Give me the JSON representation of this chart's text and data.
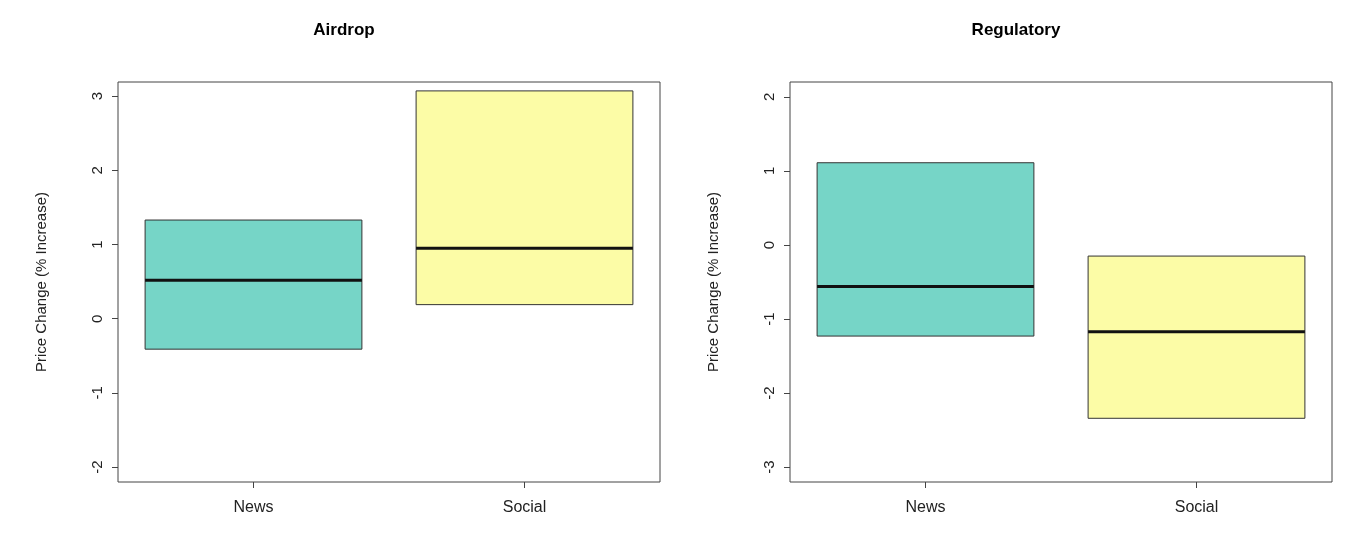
{
  "chart_data": [
    {
      "type": "box",
      "title": "Airdrop",
      "ylabel": "Price Change (% Increase)",
      "categories": [
        "News",
        "Social"
      ],
      "colors": [
        "#76d5c7",
        "#fcfca6"
      ],
      "boxes": [
        {
          "low": -0.41,
          "q1": -0.41,
          "median": 0.52,
          "q3": 1.33,
          "high": 1.33
        },
        {
          "low": 0.19,
          "q1": 0.19,
          "median": 0.95,
          "q3": 3.07,
          "high": 3.07
        }
      ],
      "ylim": [
        -2.2,
        3.19
      ],
      "yticks": [
        -2,
        -1,
        0,
        1,
        2,
        3
      ]
    },
    {
      "type": "box",
      "title": "Regulatory",
      "ylabel": "Price Change (% Increase)",
      "categories": [
        "News",
        "Social"
      ],
      "colors": [
        "#76d5c7",
        "#fcfca6"
      ],
      "boxes": [
        {
          "low": -1.23,
          "q1": -1.23,
          "median": -0.56,
          "q3": 1.11,
          "high": 1.11
        },
        {
          "low": -2.34,
          "q1": -2.34,
          "median": -1.17,
          "q3": -0.15,
          "high": -0.15
        }
      ],
      "ylim": [
        -3.2,
        2.2
      ],
      "yticks": [
        -3,
        -2,
        -1,
        0,
        1,
        2
      ]
    }
  ]
}
